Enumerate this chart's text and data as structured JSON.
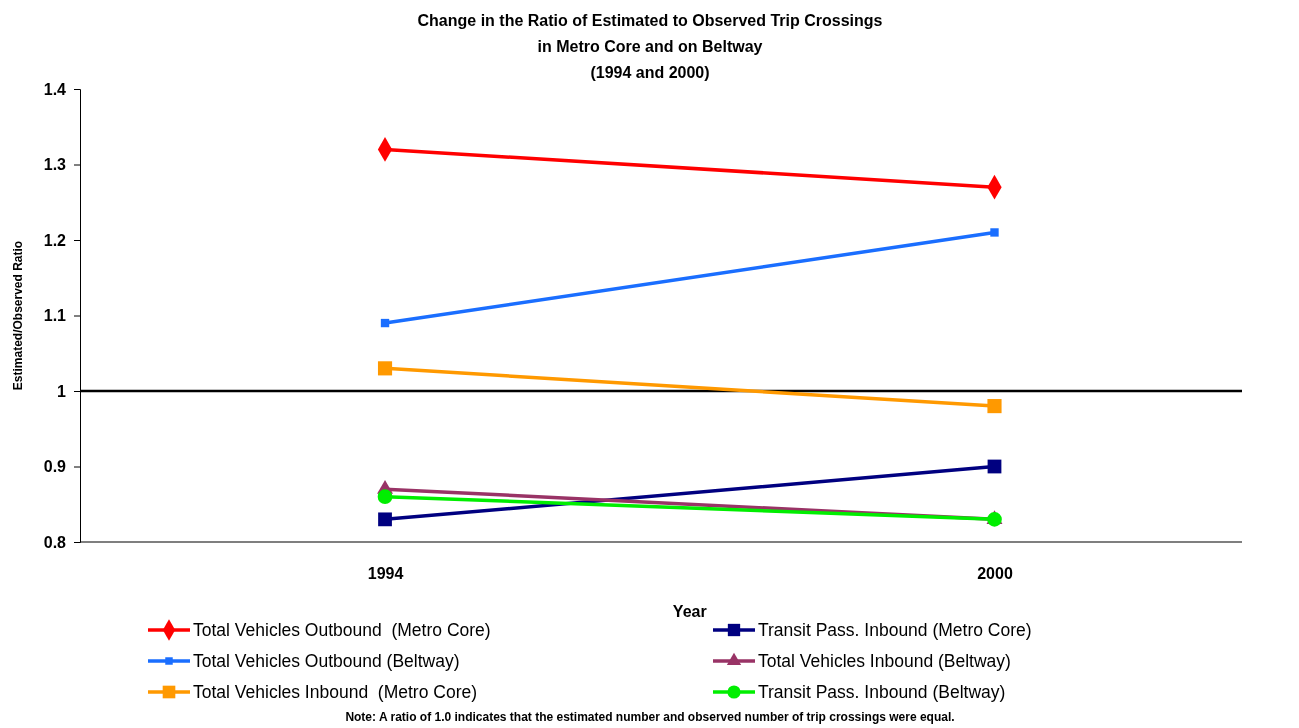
{
  "chart_data": {
    "type": "line",
    "title": "Change in the Ratio of Estimated to Observed Trip Crossings\nin Metro Core and on Beltway\n(1994 and 2000)",
    "xlabel": "Year",
    "ylabel": "Estimated/Observed Ratio",
    "categories": [
      "1994",
      "2000"
    ],
    "series": [
      {
        "name": "Total Vehicles Outbound  (Metro Core)",
        "color": "#ff0000",
        "marker": "diamond",
        "values": [
          1.32,
          1.27
        ]
      },
      {
        "name": "Total Vehicles Outbound (Beltway)",
        "color": "#1a6eff",
        "marker": "square",
        "values": [
          1.09,
          1.21
        ]
      },
      {
        "name": "Total Vehicles Inbound  (Metro Core)",
        "color": "#ff9900",
        "marker": "square",
        "values": [
          1.03,
          0.98
        ]
      },
      {
        "name": "Transit Pass. Inbound (Metro Core)",
        "color": "#000080",
        "marker": "square",
        "values": [
          0.83,
          0.9
        ]
      },
      {
        "name": "Total Vehicles Inbound (Beltway)",
        "color": "#993366",
        "marker": "triangle",
        "values": [
          0.87,
          0.83
        ]
      },
      {
        "name": "Transit Pass. Inbound (Beltway)",
        "color": "#00ee00",
        "marker": "circle",
        "values": [
          0.86,
          0.83
        ]
      }
    ],
    "ylim": [
      0.8,
      1.4
    ],
    "yticks": [
      0.8,
      0.9,
      1,
      1.1,
      1.2,
      1.3,
      1.4
    ],
    "ref_lines": [
      {
        "axis": "y",
        "value": 1,
        "color": "#000000"
      }
    ],
    "legend": "bottom",
    "grid": false,
    "annotations": [
      "Note: A ratio of 1.0 indicates that the estimated number and observed number of trip crossings were equal."
    ]
  }
}
